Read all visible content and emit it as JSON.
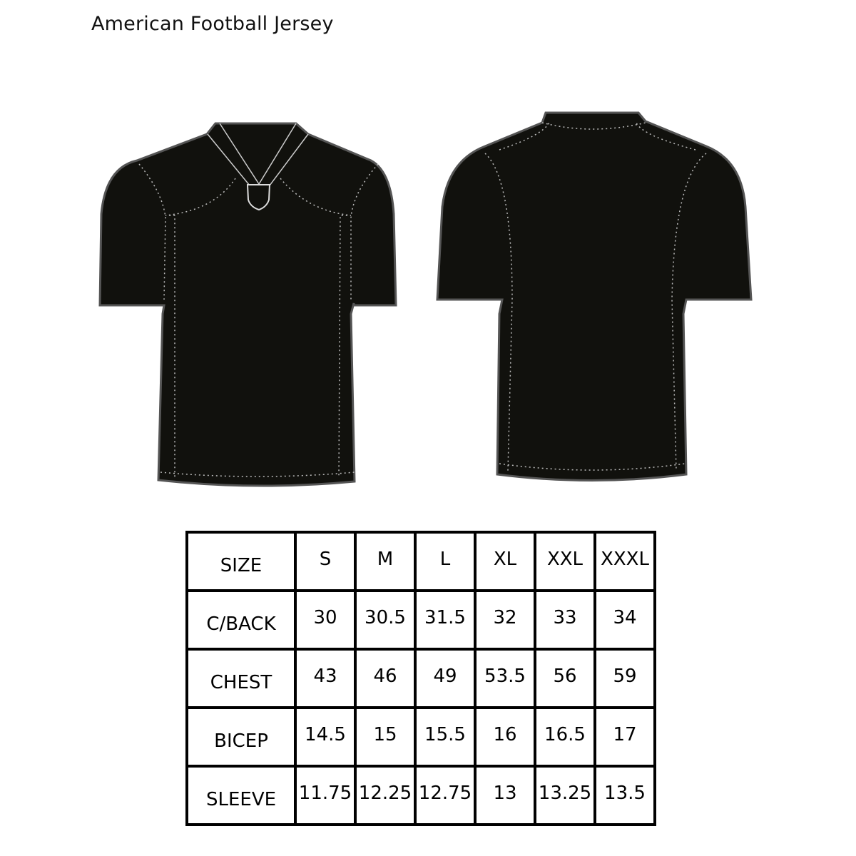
{
  "title": "American Football Jersey",
  "colors": {
    "jersey_fill": "#11110d",
    "jersey_outline": "#555555",
    "stitch": "#cccccc"
  },
  "size_chart": {
    "headers": [
      "SIZE",
      "S",
      "M",
      "L",
      "XL",
      "XXL",
      "XXXL"
    ],
    "rows": [
      {
        "label": "C/BACK",
        "values": [
          "30",
          "30.5",
          "31.5",
          "32",
          "33",
          "34"
        ]
      },
      {
        "label": "CHEST",
        "values": [
          "43",
          "46",
          "49",
          "53.5",
          "56",
          "59"
        ]
      },
      {
        "label": "BICEP",
        "values": [
          "14.5",
          "15",
          "15.5",
          "16",
          "16.5",
          "17"
        ]
      },
      {
        "label": "SLEEVE",
        "values": [
          "11.75",
          "12.25",
          "12.75",
          "13",
          "13.25",
          "13.5"
        ]
      }
    ]
  }
}
